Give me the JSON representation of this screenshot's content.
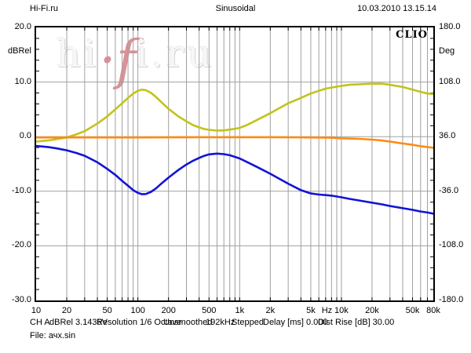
{
  "header": {
    "site": "Hi-Fi.ru",
    "title": "Sinusoidal",
    "timestamp": "10.03.2010 13.15.14"
  },
  "branding": {
    "clio_label": "CLIO",
    "watermark": {
      "pre": "hi",
      "accent": "·f",
      "post": "i.ru"
    }
  },
  "status_bar": {
    "segments": [
      "CH A",
      "dBRel 3.1436V",
      "Resolution 1/6 Octave",
      "Unsmoothed",
      "192kHz",
      "Stepped",
      "Delay [ms] 0.000",
      "Dist Rise [dB] 30.00"
    ],
    "file_line": "File: ачх.sin"
  },
  "chart_data": {
    "type": "line",
    "title": "Sinusoidal",
    "x_axis": {
      "scale": "log",
      "min_hz": 10,
      "max_hz": 80000,
      "unit": "Hz",
      "ticks": [
        {
          "hz": 10,
          "label": "10"
        },
        {
          "hz": 20,
          "label": "20"
        },
        {
          "hz": 50,
          "label": "50"
        },
        {
          "hz": 100,
          "label": "100"
        },
        {
          "hz": 200,
          "label": "200"
        },
        {
          "hz": 500,
          "label": "500"
        },
        {
          "hz": 1000,
          "label": "1k"
        },
        {
          "hz": 2000,
          "label": "2k"
        },
        {
          "hz": 5000,
          "label": "5k"
        },
        {
          "hz": 7200,
          "label": "Hz"
        },
        {
          "hz": 10000,
          "label": "10k"
        },
        {
          "hz": 20000,
          "label": "20k"
        },
        {
          "hz": 50000,
          "label": "50k"
        },
        {
          "hz": 80000,
          "label": "80k"
        }
      ]
    },
    "y_axis_left": {
      "unit": "dBRel",
      "min": -30,
      "max": 20,
      "major_step": 10,
      "minor_step": 2,
      "ticks": [
        {
          "db": 20,
          "label": "20.0"
        },
        {
          "db": 10,
          "label": "10.0"
        },
        {
          "db": 0,
          "label": "0.0"
        },
        {
          "db": -10,
          "label": "-10.0"
        },
        {
          "db": -20,
          "label": "-20.0"
        },
        {
          "db": -30,
          "label": "-30.0"
        }
      ]
    },
    "y_axis_right": {
      "unit": "Deg",
      "min": -180,
      "max": 180,
      "ticks": [
        {
          "deg": 180,
          "label": "180.0"
        },
        {
          "deg": 108,
          "label": "108.0"
        },
        {
          "deg": 36,
          "label": "36.0"
        },
        {
          "deg": -36,
          "label": "-36.0"
        },
        {
          "deg": -108,
          "label": "-108.0"
        },
        {
          "deg": -180,
          "label": "-180.0"
        }
      ]
    },
    "grid": {
      "color": "#a0a0a0",
      "h_lines_db": [
        10,
        0,
        -10,
        -20
      ]
    },
    "series": [
      {
        "name": "upper-trace-yellow",
        "color": "#c2c31a",
        "points": [
          [
            10,
            -0.9
          ],
          [
            13,
            -0.7
          ],
          [
            16,
            -0.45
          ],
          [
            20,
            -0.15
          ],
          [
            25,
            0.45
          ],
          [
            30,
            1.0
          ],
          [
            40,
            2.4
          ],
          [
            50,
            3.7
          ],
          [
            60,
            5.0
          ],
          [
            70,
            6.1
          ],
          [
            80,
            7.1
          ],
          [
            90,
            7.9
          ],
          [
            100,
            8.4
          ],
          [
            110,
            8.6
          ],
          [
            120,
            8.5
          ],
          [
            135,
            8.0
          ],
          [
            150,
            7.3
          ],
          [
            175,
            6.1
          ],
          [
            200,
            5.1
          ],
          [
            250,
            3.7
          ],
          [
            300,
            2.8
          ],
          [
            350,
            2.1
          ],
          [
            400,
            1.7
          ],
          [
            450,
            1.4
          ],
          [
            500,
            1.25
          ],
          [
            600,
            1.1
          ],
          [
            700,
            1.15
          ],
          [
            800,
            1.3
          ],
          [
            900,
            1.45
          ],
          [
            1000,
            1.6
          ],
          [
            1200,
            2.2
          ],
          [
            1500,
            3.1
          ],
          [
            2000,
            4.3
          ],
          [
            2500,
            5.3
          ],
          [
            3000,
            6.1
          ],
          [
            4000,
            7.1
          ],
          [
            5000,
            7.9
          ],
          [
            6000,
            8.4
          ],
          [
            7000,
            8.8
          ],
          [
            8000,
            9.0
          ],
          [
            10000,
            9.3
          ],
          [
            12000,
            9.5
          ],
          [
            15000,
            9.6
          ],
          [
            20000,
            9.7
          ],
          [
            25000,
            9.7
          ],
          [
            30000,
            9.5
          ],
          [
            40000,
            9.1
          ],
          [
            50000,
            8.6
          ],
          [
            60000,
            8.2
          ],
          [
            70000,
            7.9
          ],
          [
            80000,
            7.8
          ]
        ]
      },
      {
        "name": "flat-trace-orange",
        "color": "#ff8a12",
        "points": [
          [
            10,
            -0.15
          ],
          [
            50,
            -0.15
          ],
          [
            100,
            -0.15
          ],
          [
            500,
            -0.1
          ],
          [
            1000,
            -0.1
          ],
          [
            2000,
            -0.1
          ],
          [
            5000,
            -0.15
          ],
          [
            8000,
            -0.2
          ],
          [
            10000,
            -0.3
          ],
          [
            12000,
            -0.35
          ],
          [
            15000,
            -0.4
          ],
          [
            20000,
            -0.55
          ],
          [
            25000,
            -0.7
          ],
          [
            30000,
            -0.9
          ],
          [
            40000,
            -1.25
          ],
          [
            50000,
            -1.5
          ],
          [
            60000,
            -1.75
          ],
          [
            70000,
            -1.9
          ],
          [
            80000,
            -2.05
          ]
        ]
      },
      {
        "name": "lower-trace-blue",
        "color": "#1213d6",
        "points": [
          [
            10,
            -1.7
          ],
          [
            13,
            -1.9
          ],
          [
            16,
            -2.15
          ],
          [
            20,
            -2.5
          ],
          [
            25,
            -3.0
          ],
          [
            30,
            -3.5
          ],
          [
            40,
            -4.7
          ],
          [
            50,
            -5.9
          ],
          [
            60,
            -7.0
          ],
          [
            70,
            -8.1
          ],
          [
            80,
            -9.0
          ],
          [
            90,
            -9.8
          ],
          [
            100,
            -10.3
          ],
          [
            110,
            -10.55
          ],
          [
            120,
            -10.5
          ],
          [
            135,
            -10.1
          ],
          [
            150,
            -9.5
          ],
          [
            175,
            -8.4
          ],
          [
            200,
            -7.5
          ],
          [
            250,
            -6.1
          ],
          [
            300,
            -5.1
          ],
          [
            350,
            -4.4
          ],
          [
            400,
            -3.9
          ],
          [
            450,
            -3.5
          ],
          [
            500,
            -3.25
          ],
          [
            600,
            -3.1
          ],
          [
            700,
            -3.2
          ],
          [
            800,
            -3.4
          ],
          [
            900,
            -3.7
          ],
          [
            1000,
            -4.0
          ],
          [
            1200,
            -4.7
          ],
          [
            1500,
            -5.6
          ],
          [
            2000,
            -6.8
          ],
          [
            2500,
            -7.8
          ],
          [
            3000,
            -8.6
          ],
          [
            4000,
            -9.8
          ],
          [
            5000,
            -10.4
          ],
          [
            6000,
            -10.6
          ],
          [
            7000,
            -10.7
          ],
          [
            8000,
            -10.8
          ],
          [
            10000,
            -11.1
          ],
          [
            12000,
            -11.4
          ],
          [
            15000,
            -11.7
          ],
          [
            20000,
            -12.1
          ],
          [
            25000,
            -12.4
          ],
          [
            30000,
            -12.7
          ],
          [
            40000,
            -13.1
          ],
          [
            50000,
            -13.4
          ],
          [
            60000,
            -13.7
          ],
          [
            70000,
            -13.9
          ],
          [
            80000,
            -14.1
          ]
        ]
      }
    ]
  }
}
